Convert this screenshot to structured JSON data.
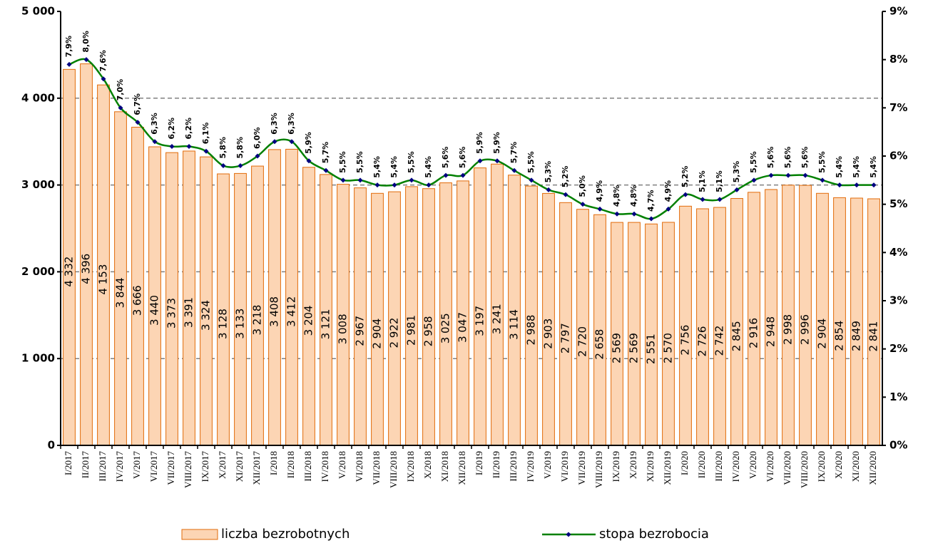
{
  "chart_data": {
    "type": "bar-line",
    "categories": [
      "I/2017",
      "II/2017",
      "III/2017",
      "IV/2017",
      "V/2017",
      "VI/2017",
      "VII/2017",
      "VIII/2017",
      "IX/2017",
      "X/2017",
      "XI/2017",
      "XII/2017",
      "I/2018",
      "II/2018",
      "III/2018",
      "IV/2018",
      "V/2018",
      "VI/2018",
      "VII/2018",
      "VIII/2018",
      "IX/2018",
      "X/2018",
      "XI/2018",
      "XII/2018",
      "I/2019",
      "II/2019",
      "III/2019",
      "IV/2019",
      "V/2019",
      "VI/2019",
      "VII/2019",
      "VIII/2019",
      "IX/2019",
      "X/2019",
      "XI/2019",
      "XII/2019",
      "I/2020",
      "II/2020",
      "III/2020",
      "IV/2020",
      "V/2020",
      "VI/2020",
      "VII/2020",
      "VIII/2020",
      "IX/2020",
      "X/2020",
      "XI/2020",
      "XII/2020"
    ],
    "series": [
      {
        "name": "liczba bezrobotnych",
        "type": "bar",
        "color": "#fcd5b4",
        "edge": "#e26b0a",
        "values": [
          4332,
          4396,
          4153,
          3844,
          3666,
          3440,
          3373,
          3391,
          3324,
          3128,
          3133,
          3218,
          3408,
          3412,
          3204,
          3121,
          3008,
          2967,
          2904,
          2922,
          2981,
          2958,
          3025,
          3047,
          3197,
          3241,
          3114,
          2988,
          2903,
          2797,
          2720,
          2658,
          2569,
          2569,
          2551,
          2570,
          2756,
          2726,
          2742,
          2845,
          2916,
          2948,
          2998,
          2996,
          2904,
          2854,
          2849,
          2841
        ],
        "value_labels": [
          "4 332",
          "4 396",
          "4 153",
          "3 844",
          "3 666",
          "3 440",
          "3 373",
          "3 391",
          "3 324",
          "3 128",
          "3 133",
          "3 218",
          "3 408",
          "3 412",
          "3 204",
          "3 121",
          "3 008",
          "2 967",
          "2 904",
          "2 922",
          "2 981",
          "2 958",
          "3 025",
          "3 047",
          "3 197",
          "3 241",
          "3 114",
          "2 988",
          "2 903",
          "2 797",
          "2 720",
          "2 658",
          "2 569",
          "2 569",
          "2 551",
          "2 570",
          "2 756",
          "2 726",
          "2 742",
          "2 845",
          "2 916",
          "2 948",
          "2 998",
          "2 996",
          "2 904",
          "2 854",
          "2 849",
          "2 841"
        ]
      },
      {
        "name": "stopa bezrobocia",
        "type": "line",
        "axis": "y2",
        "color": "#008000",
        "marker_color": "#000080",
        "values": [
          7.9,
          8.0,
          7.6,
          7.0,
          6.7,
          6.3,
          6.2,
          6.2,
          6.1,
          5.8,
          5.8,
          6.0,
          6.3,
          6.3,
          5.9,
          5.7,
          5.5,
          5.5,
          5.4,
          5.4,
          5.5,
          5.4,
          5.6,
          5.6,
          5.9,
          5.9,
          5.7,
          5.5,
          5.3,
          5.2,
          5.0,
          4.9,
          4.8,
          4.8,
          4.7,
          4.9,
          5.2,
          5.1,
          5.1,
          5.3,
          5.5,
          5.6,
          5.6,
          5.6,
          5.5,
          5.4,
          5.4,
          5.4
        ],
        "value_labels": [
          "7,9%",
          "8,0%",
          "7,6%",
          "7,0%",
          "6,7%",
          "6,3%",
          "6,2%",
          "6,2%",
          "6,1%",
          "5,8%",
          "5,8%",
          "6,0%",
          "6,3%",
          "6,3%",
          "5,9%",
          "5,7%",
          "5,5%",
          "5,5%",
          "5,4%",
          "5,4%",
          "5,5%",
          "5,4%",
          "5,6%",
          "5,6%",
          "5,9%",
          "5,9%",
          "5,7%",
          "5,5%",
          "5,3%",
          "5,2%",
          "5,0%",
          "4,9%",
          "4,8%",
          "4,8%",
          "4,7%",
          "4,9%",
          "5,2%",
          "5,1%",
          "5,1%",
          "5,3%",
          "5,5%",
          "5,6%",
          "5,6%",
          "5,6%",
          "5,5%",
          "5,4%",
          "5,4%",
          "5,4%"
        ]
      }
    ],
    "ylim": [
      0,
      5000
    ],
    "yticks": [
      0,
      {
        "value": 1000,
        "label": "1 000"
      },
      {
        "value": 2000,
        "label": "2 000"
      },
      {
        "value": 3000,
        "label": "3 000"
      },
      {
        "value": 4000,
        "label": "4 000"
      },
      {
        "value": 5000,
        "label": "5 000"
      }
    ],
    "y2lim": [
      0,
      9
    ],
    "y2ticks": [
      {
        "value": 0,
        "label": "0%"
      },
      {
        "value": 1,
        "label": "1%"
      },
      {
        "value": 2,
        "label": "2%"
      },
      {
        "value": 3,
        "label": "3%"
      },
      {
        "value": 4,
        "label": "4%"
      },
      {
        "value": 5,
        "label": "5%"
      },
      {
        "value": 6,
        "label": "6%"
      },
      {
        "value": 7,
        "label": "7%"
      },
      {
        "value": 8,
        "label": "8%"
      },
      {
        "value": 9,
        "label": "9%"
      }
    ],
    "grid": true,
    "legend": "bottom"
  }
}
